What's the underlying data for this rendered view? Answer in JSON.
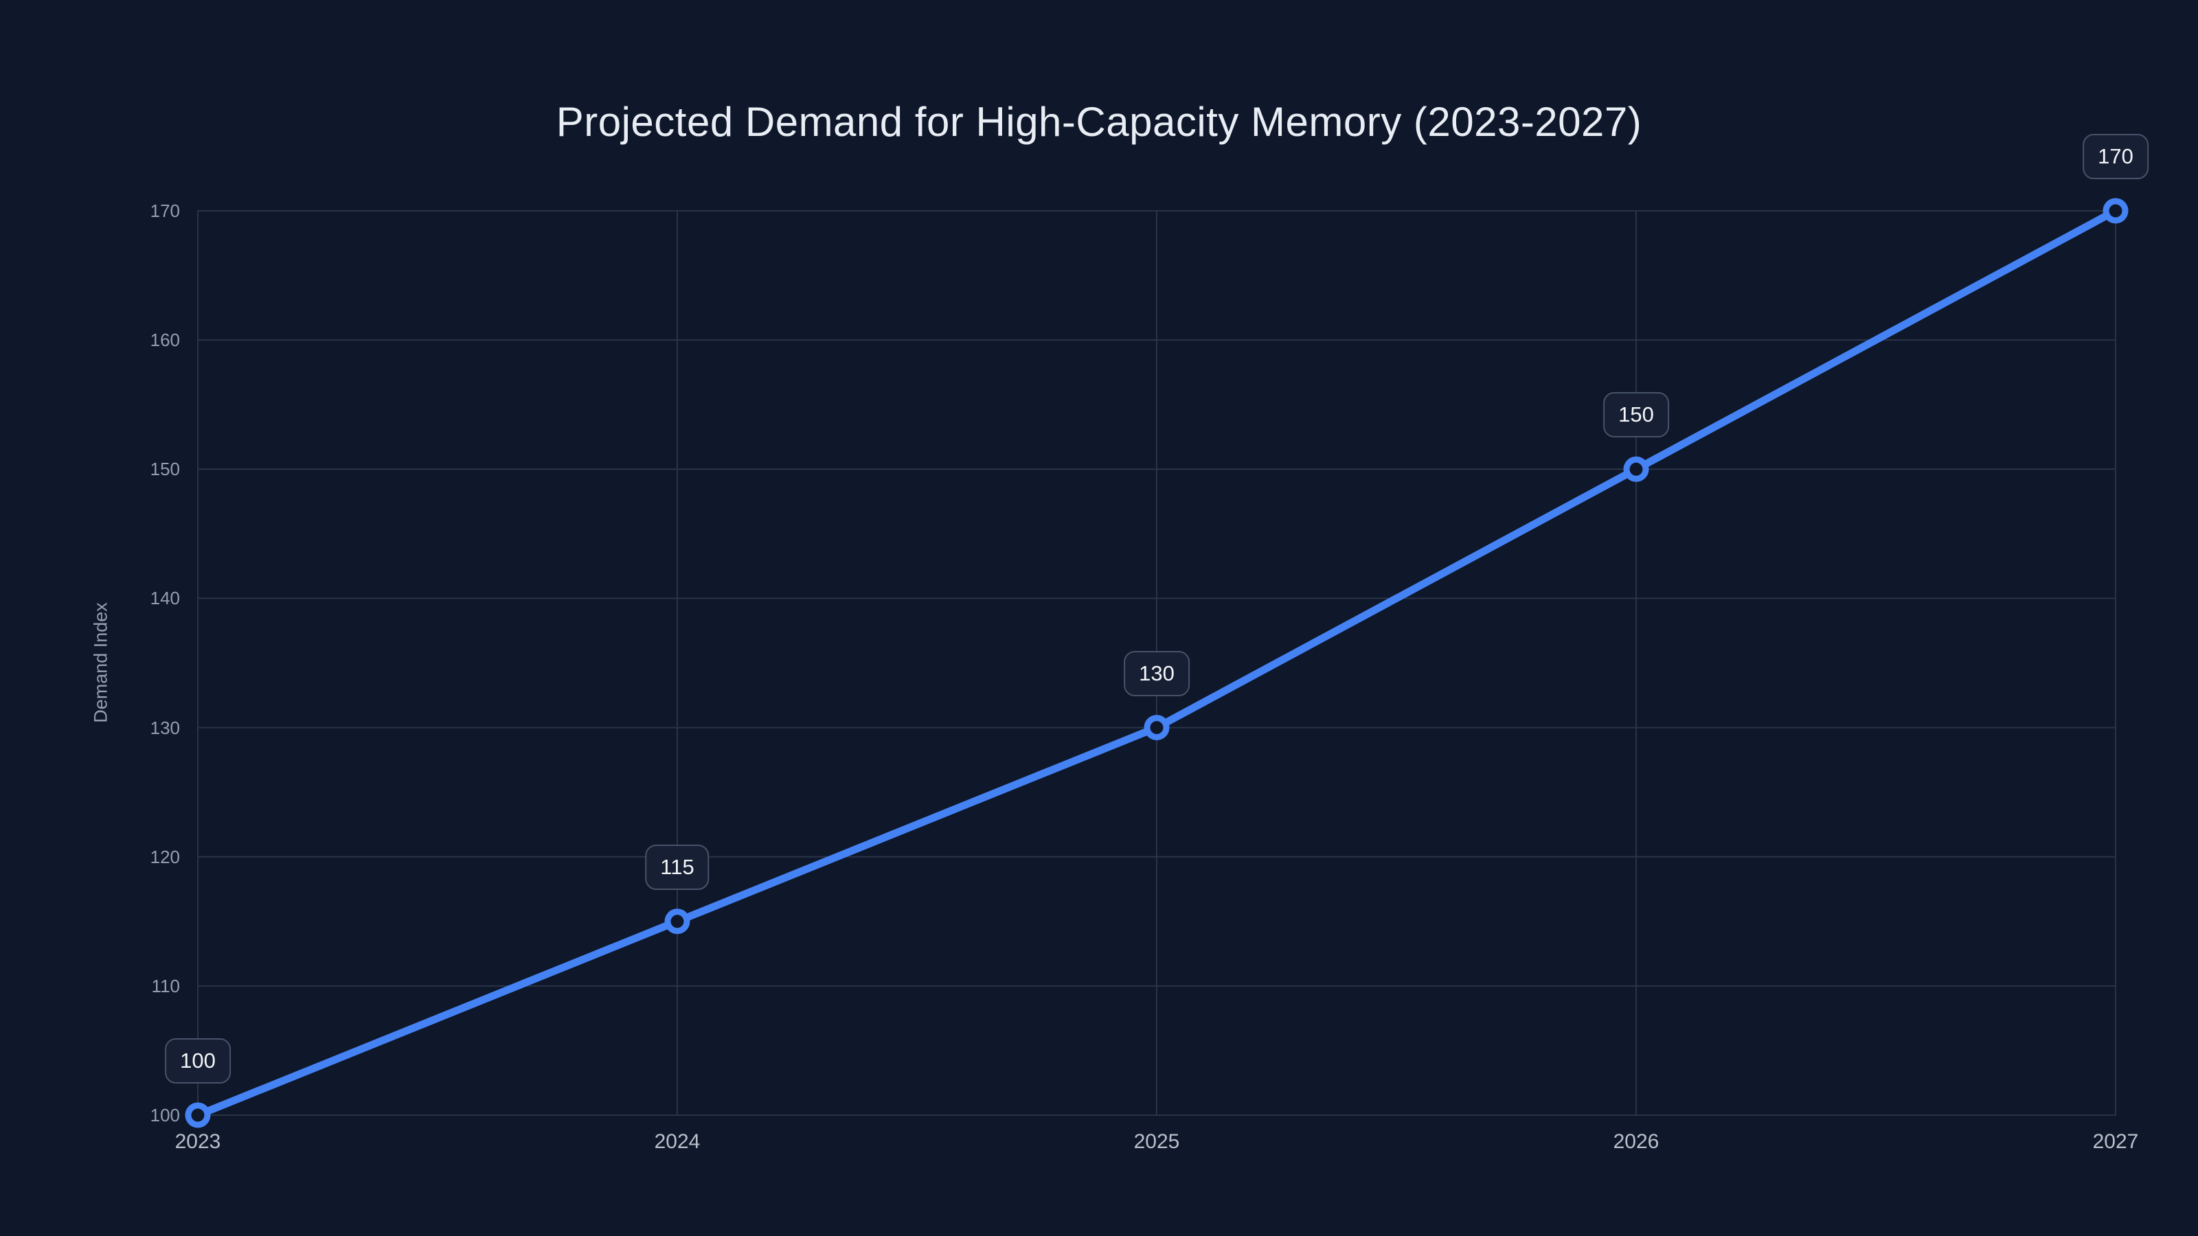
{
  "title": {
    "text": "Projected Demand for High-Capacity Memory (2023-2027)"
  },
  "chart_data": {
    "type": "line",
    "title": "Projected Demand for High-Capacity Memory (2023-2027)",
    "categories": [
      "2023",
      "2024",
      "2025",
      "2026",
      "2027"
    ],
    "series": [
      {
        "name": "Demand Index",
        "values": [
          100,
          115,
          130,
          150,
          170
        ]
      }
    ],
    "point_labels": [
      "100",
      "115",
      "130",
      "150",
      "170"
    ],
    "xlabel": "",
    "ylabel": "Demand Index",
    "ylim": [
      100,
      170
    ],
    "y_ticks": [
      100,
      110,
      120,
      130,
      140,
      150,
      160,
      170
    ],
    "grid": true,
    "legend": false,
    "marker_style": "open-circle"
  },
  "colors": {
    "background": "#0F172A",
    "accent_line": "#4583F5",
    "gridline": "#2A3447",
    "title_text": "#E9EDF4",
    "y_tick_text": "#93A0B1",
    "x_tick_text": "#B9C0CB",
    "label_box_bg": "#161F33",
    "label_box_border": "#47536A",
    "label_text": "#F4F6F9"
  }
}
